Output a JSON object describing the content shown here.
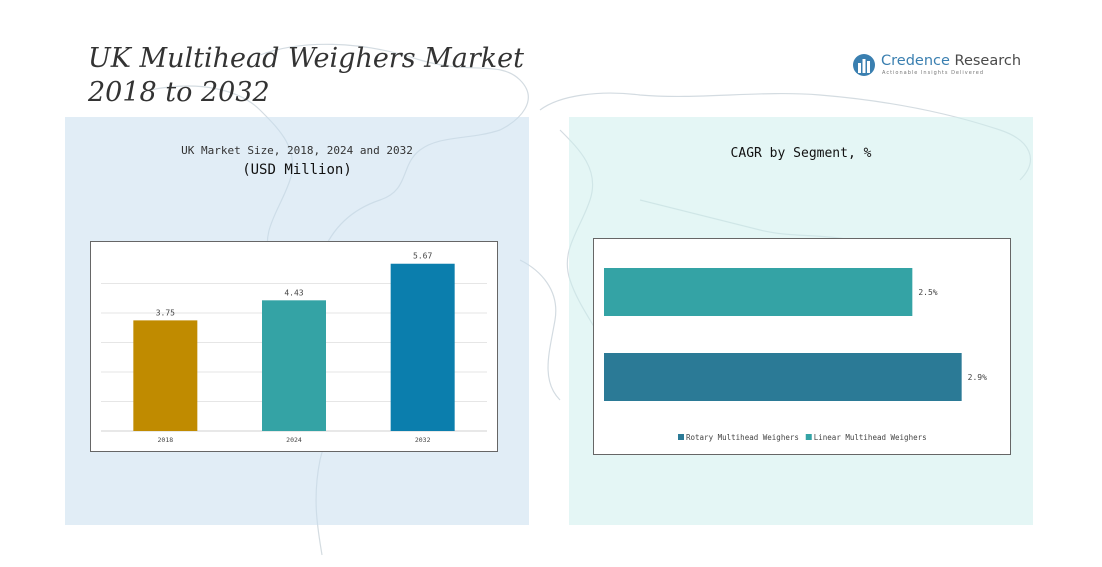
{
  "header": {
    "title_line1": "UK Multihead Weighers Market",
    "title_line2": "2018 to 2032"
  },
  "logo": {
    "brand_part1": "Credence",
    "brand_part2": " Research",
    "tagline": "Actionable Insights Delivered"
  },
  "left_panel": {
    "title": "UK Market Size, 2018, 2024 and 2032",
    "subtitle": "(USD Million)"
  },
  "right_panel": {
    "title": "CAGR by Segment, %"
  },
  "chart_data": [
    {
      "type": "bar",
      "title": "UK Market Size, 2018, 2024 and 2032",
      "subtitle": "(USD Million)",
      "categories": [
        "2018",
        "2024",
        "2032"
      ],
      "values": [
        3.75,
        4.43,
        5.67
      ],
      "value_labels": [
        "3.75",
        "4.43",
        "5.67"
      ],
      "colors": [
        "#c08b00",
        "#34a3a5",
        "#0b7ead"
      ],
      "ylim": [
        0,
        6
      ],
      "grid": true
    },
    {
      "type": "bar",
      "orientation": "horizontal",
      "title": "CAGR by Segment, %",
      "categories": [
        "Linear Multihead Weighers",
        "Rotary Multihead Weighers"
      ],
      "values": [
        2.5,
        2.9
      ],
      "value_labels": [
        "2.5%",
        "2.9%"
      ],
      "colors": [
        "#34a3a5",
        "#2b7a96"
      ],
      "xlim": [
        0,
        3.0
      ],
      "legend": {
        "placement": "bottom",
        "entries": [
          {
            "label": "Rotary Multihead Weighers",
            "color": "#2b7a96"
          },
          {
            "label": "Linear Multihead Weighers",
            "color": "#34a3a5"
          }
        ]
      }
    }
  ]
}
